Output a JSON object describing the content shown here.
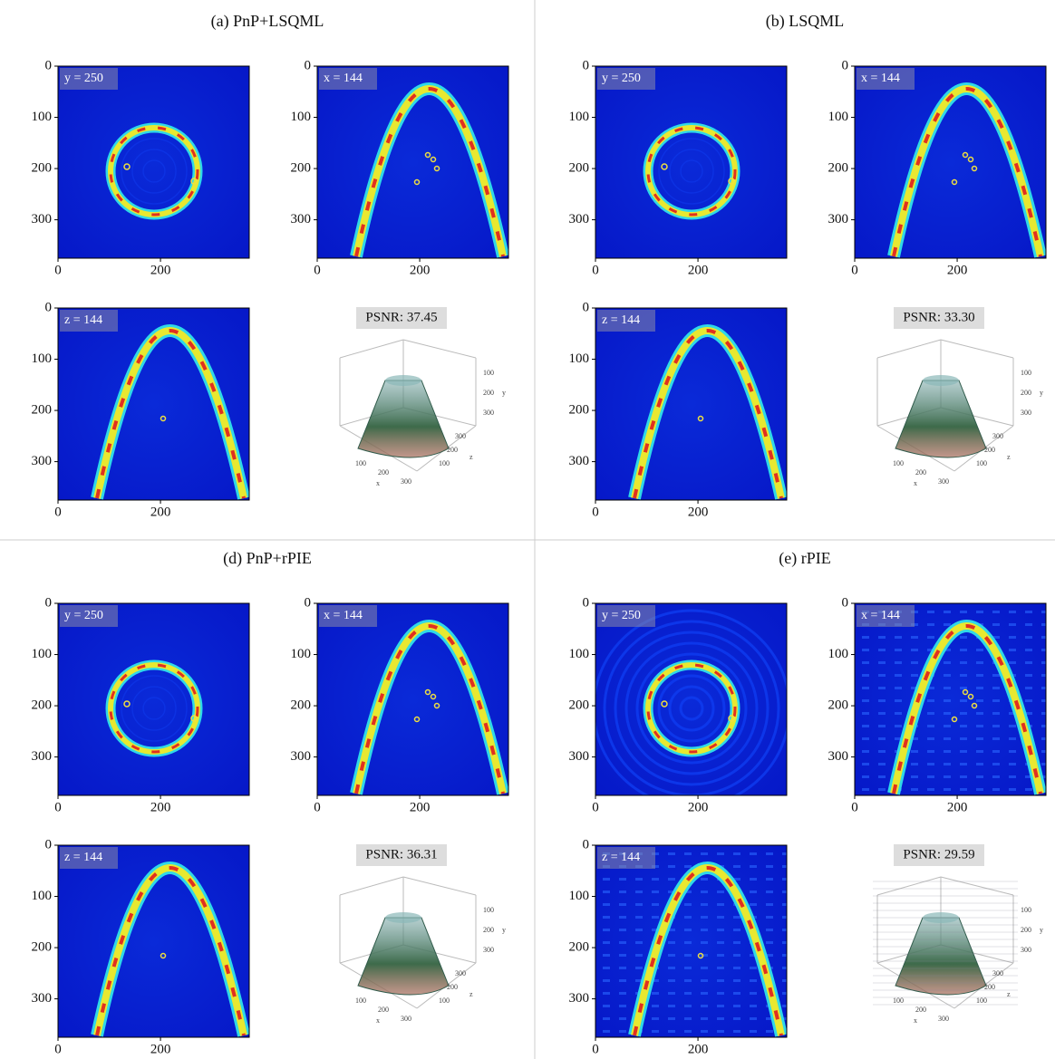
{
  "panels": [
    {
      "title": "(a) PnP+LSQML",
      "slices": [
        "y = 250",
        "x = 144",
        "z = 144"
      ],
      "psnr": "PSNR: 37.45"
    },
    {
      "title": "(b) LSQML",
      "slices": [
        "y = 250",
        "x = 144",
        "z = 144"
      ],
      "psnr": "PSNR: 33.30"
    },
    {
      "title": "(d) PnP+rPIE",
      "slices": [
        "y = 250",
        "x = 144",
        "z = 144"
      ],
      "psnr": "PSNR: 36.31"
    },
    {
      "title": "(e) rPIE",
      "slices": [
        "y = 250",
        "x = 144",
        "z = 144"
      ],
      "psnr": "PSNR: 29.59"
    }
  ],
  "slice_axes": {
    "yticks": [
      0,
      100,
      200,
      300
    ],
    "xticks": [
      0,
      200
    ]
  },
  "render_axes": {
    "x_label": "x",
    "y_label": "y",
    "z_label": "z",
    "xticks": [
      100,
      200,
      300
    ],
    "yticks": [
      100,
      200,
      300
    ],
    "zticks": [
      300,
      200,
      100
    ]
  }
}
